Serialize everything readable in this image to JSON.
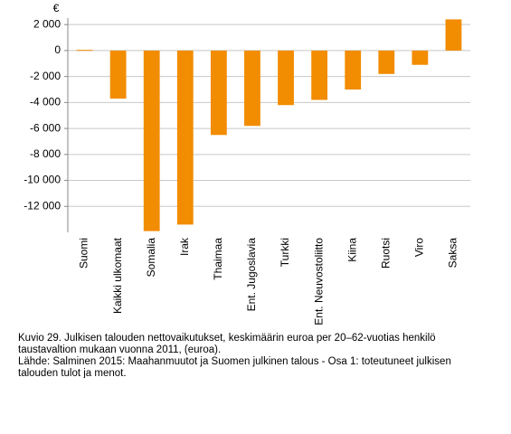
{
  "chart_data": {
    "type": "bar",
    "ylabel": "€",
    "categories": [
      "Suomi",
      "Kaikki ulkomaat",
      "Somalia",
      "Irak",
      "Thaimaa",
      "Ent. Jugoslavia",
      "Turkki",
      "Ent. Neuvostoliitto",
      "Kiina",
      "Ruotsi",
      "Viro",
      "Saksa"
    ],
    "values": [
      50,
      -3700,
      -13900,
      -13400,
      -6500,
      -5800,
      -4200,
      -3800,
      -3000,
      -1800,
      -1100,
      2400
    ],
    "color": "#f28c00",
    "ylim": [
      -14000,
      2500
    ],
    "yticks": [
      {
        "value": 2000,
        "label": "2 000"
      },
      0,
      {
        "value": -2000,
        "label": "-2 000"
      },
      {
        "value": -4000,
        "label": "-4 000"
      },
      {
        "value": -6000,
        "label": "-6 000"
      },
      {
        "value": -8000,
        "label": "-8 000"
      },
      {
        "value": -10000,
        "label": "-10 000"
      },
      {
        "value": -12000,
        "label": "-12 000"
      }
    ],
    "grid": true
  },
  "caption": {
    "title": "Kuvio 29. Julkisen talouden nettovaikutukset, keskimäärin euroa per 20–62-vuotias henkilö taustavaltion mukaan vuonna 2011, (euroa).",
    "source": "Lähde: Salminen 2015: Maahanmuutot ja Suomen julkinen talous - Osa 1: toteutuneet julkisen talouden tulot ja menot."
  }
}
